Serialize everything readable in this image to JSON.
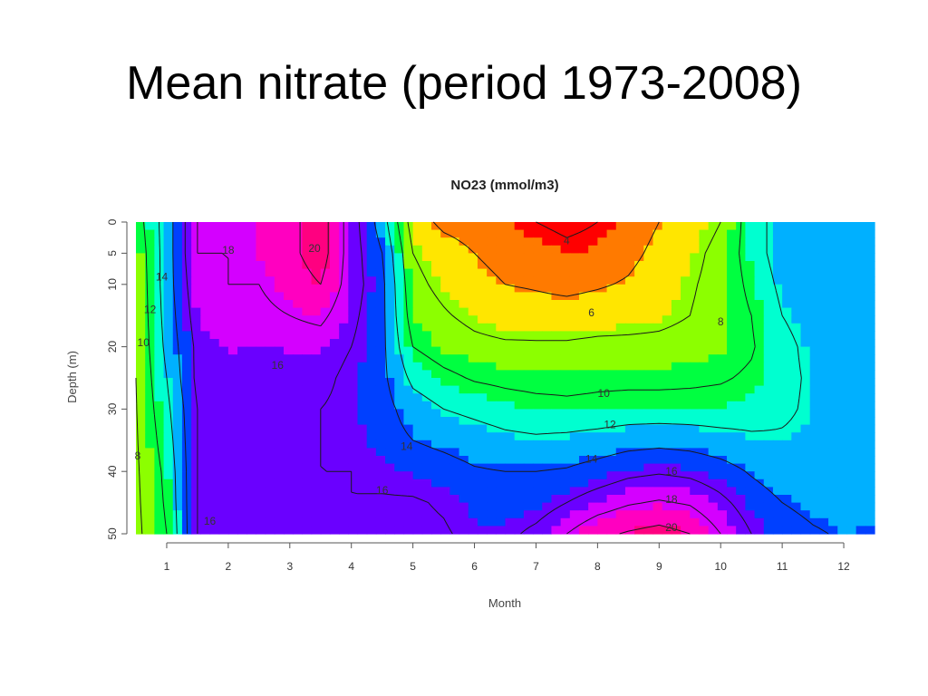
{
  "slide": {
    "title": "Mean nitrate (period 1973-2008)"
  },
  "chart_data": {
    "type": "heatmap",
    "title": "NO23 (mmol/m3)",
    "xlabel": "Month",
    "ylabel": "Depth (m)",
    "xlim": [
      0.5,
      12.5
    ],
    "ylim": [
      50,
      0
    ],
    "x_ticks": [
      1,
      2,
      3,
      4,
      5,
      6,
      7,
      8,
      9,
      10,
      11,
      12
    ],
    "y_ticks": [
      0,
      5,
      10,
      20,
      30,
      40,
      50
    ],
    "y_reversed": true,
    "grid": false,
    "color_scale": {
      "low_to_high": [
        "#ff0000",
        "#ff7a00",
        "#ffe600",
        "#8cff00",
        "#00ff40",
        "#00ffd0",
        "#00b0ff",
        "#0040ff",
        "#6a00ff",
        "#d400ff",
        "#ff00c0",
        "#ff0080"
      ]
    },
    "x": [
      0.5,
      1,
      1.5,
      2,
      2.5,
      3,
      3.5,
      4,
      4.5,
      5,
      5.5,
      6,
      6.5,
      7,
      7.5,
      8,
      8.5,
      9,
      9.5,
      10,
      10.5,
      11,
      11.5,
      12,
      12.5
    ],
    "y": [
      0,
      5,
      10,
      15,
      20,
      25,
      30,
      35,
      40,
      45,
      50
    ],
    "z": [
      [
        9,
        13,
        18,
        18,
        18.5,
        19.5,
        21,
        17,
        13,
        7,
        5.5,
        5,
        4.5,
        4,
        3.5,
        4,
        5,
        6,
        7,
        8,
        11,
        13,
        13,
        13,
        13
      ],
      [
        8.5,
        13,
        18,
        18,
        18.5,
        19.5,
        21,
        17,
        14,
        8,
        7,
        6,
        5.5,
        5,
        4.5,
        4.7,
        5.5,
        6.5,
        7.5,
        8.5,
        11,
        13,
        13,
        13.5,
        13.5
      ],
      [
        8.3,
        13,
        17.5,
        18,
        18,
        19,
        20,
        17,
        14.5,
        8.5,
        7.5,
        6.5,
        6,
        5.8,
        5.5,
        5.8,
        6.2,
        7,
        7.8,
        8.6,
        10.5,
        12.5,
        13,
        13.5,
        13.5
      ],
      [
        8.2,
        12.8,
        17,
        17.5,
        17.5,
        18,
        18.5,
        16.5,
        14.5,
        9,
        8.2,
        7.5,
        7,
        6.8,
        6.8,
        7,
        7.2,
        7.5,
        8,
        8.7,
        10,
        12,
        12.8,
        13.5,
        13.5
      ],
      [
        8.1,
        12.5,
        16.5,
        17,
        16.8,
        17,
        17,
        16,
        14.5,
        10,
        9,
        8.5,
        8.3,
        8.3,
        8.3,
        8.5,
        8.5,
        8.5,
        8.7,
        9,
        9.8,
        11.5,
        12.5,
        13.3,
        13.5
      ],
      [
        8,
        12,
        16.5,
        16.5,
        16.2,
        16.5,
        16.5,
        15.5,
        14.5,
        11.5,
        10.5,
        9.8,
        9.5,
        9.3,
        9.3,
        9.5,
        9.5,
        9.5,
        9.6,
        9.8,
        10.3,
        11.5,
        12.3,
        13,
        13.3
      ],
      [
        7.9,
        11.5,
        16,
        16,
        16,
        16,
        16,
        15.5,
        14.8,
        13,
        12,
        11.5,
        11,
        10.7,
        10.5,
        10.6,
        10.8,
        10.8,
        10.8,
        10.8,
        11,
        11.7,
        12.3,
        12.8,
        13
      ],
      [
        7.8,
        11,
        16,
        16,
        16,
        16,
        16,
        15.7,
        15,
        14,
        13.5,
        13,
        12.5,
        12.3,
        12.5,
        12.8,
        13.2,
        13.4,
        13.2,
        12.8,
        12.4,
        12.2,
        12.4,
        12.8,
        13
      ],
      [
        7.7,
        10.5,
        16,
        16,
        16,
        16,
        16,
        16,
        15.5,
        15.2,
        14.8,
        14.2,
        14,
        14,
        14.2,
        14.8,
        15.5,
        15.8,
        15.5,
        14.8,
        13.8,
        13,
        12.8,
        12.8,
        13
      ],
      [
        7.6,
        10.3,
        16,
        16,
        16,
        16,
        16,
        16,
        16.2,
        16.2,
        15.8,
        15,
        14.8,
        15,
        16,
        17,
        17.8,
        18.2,
        17.8,
        16.5,
        15,
        14,
        13.5,
        13.3,
        13.5
      ],
      [
        7.5,
        10,
        16,
        16,
        16,
        16,
        16,
        16,
        16.5,
        16.5,
        16.2,
        15.5,
        15.5,
        16.5,
        18,
        19.5,
        20.2,
        20.7,
        20,
        18,
        16,
        14.8,
        14.2,
        13.8,
        14
      ]
    ],
    "contour_levels": [
      4,
      6,
      8,
      10,
      12,
      14,
      16,
      18,
      20
    ],
    "contour_labels": [
      {
        "text": "4",
        "month": 7.5,
        "depth": 3
      },
      {
        "text": "6",
        "month": 7.9,
        "depth": 14.5
      },
      {
        "text": "8",
        "month": 10.0,
        "depth": 16
      },
      {
        "text": "10",
        "month": 8.1,
        "depth": 27.5
      },
      {
        "text": "12",
        "month": 8.2,
        "depth": 32.5
      },
      {
        "text": "14",
        "month": 7.9,
        "depth": 38
      },
      {
        "text": "16",
        "month": 9.2,
        "depth": 40
      },
      {
        "text": "18",
        "month": 9.2,
        "depth": 44.5
      },
      {
        "text": "20",
        "month": 9.2,
        "depth": 49
      },
      {
        "text": "18",
        "month": 2.0,
        "depth": 4.5
      },
      {
        "text": "20",
        "month": 3.4,
        "depth": 4.2
      },
      {
        "text": "16",
        "month": 2.8,
        "depth": 23
      },
      {
        "text": "14",
        "month": 0.92,
        "depth": 8.8
      },
      {
        "text": "12",
        "month": 0.73,
        "depth": 14
      },
      {
        "text": "10",
        "month": 0.62,
        "depth": 19.3
      },
      {
        "text": "8",
        "month": 0.53,
        "depth": 37.5
      },
      {
        "text": "16",
        "month": 1.7,
        "depth": 48
      },
      {
        "text": "14",
        "month": 4.9,
        "depth": 36
      },
      {
        "text": "16",
        "month": 4.5,
        "depth": 43
      }
    ]
  }
}
